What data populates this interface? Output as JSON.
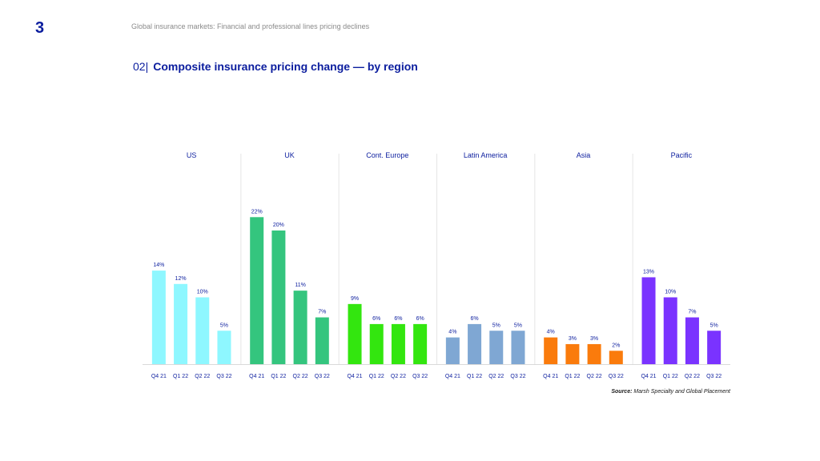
{
  "header": {
    "page_number": "3",
    "title": "Global insurance markets: Financial and professional lines pricing declines"
  },
  "chart_heading": {
    "number": "02",
    "separator": "|",
    "title": "Composite insurance pricing change — by region"
  },
  "source": {
    "label": "Source:",
    "text": "Marsh Specialty and Global Placement"
  },
  "chart_data": {
    "type": "bar",
    "title": "Composite insurance pricing change — by region",
    "categories": [
      "Q4 21",
      "Q1 22",
      "Q2 22",
      "Q3 22"
    ],
    "ylim": [
      0,
      25
    ],
    "value_suffix": "%",
    "groups": [
      {
        "name": "US",
        "color": "#8ef7ff",
        "values": [
          14,
          12,
          10,
          5
        ]
      },
      {
        "name": "UK",
        "color": "#34c57e",
        "values": [
          22,
          20,
          11,
          7
        ]
      },
      {
        "name": "Cont. Europe",
        "color": "#33e60f",
        "values": [
          9,
          6,
          6,
          6
        ]
      },
      {
        "name": "Latin America",
        "color": "#7fa7d3",
        "values": [
          4,
          6,
          5,
          5
        ]
      },
      {
        "name": "Asia",
        "color": "#fa7b0c",
        "values": [
          4,
          3,
          3,
          2
        ]
      },
      {
        "name": "Pacific",
        "color": "#7a33ff",
        "values": [
          13,
          10,
          7,
          5
        ]
      }
    ]
  }
}
